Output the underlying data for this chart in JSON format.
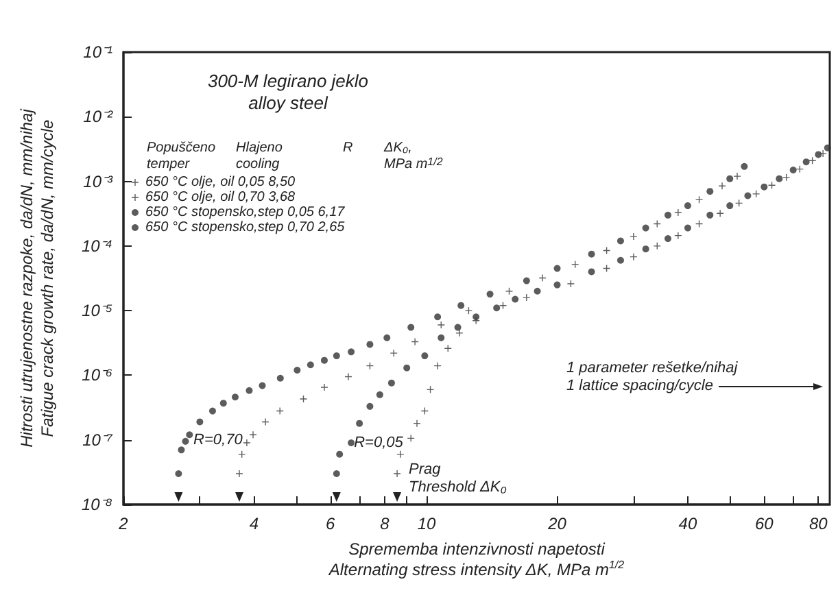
{
  "chart_data": {
    "type": "scatter",
    "title": "300-M legirano jeklo\nalloy steel",
    "xlabel": "Sprememba intenzivnosti napetosti\nAlternating stress intensity ΔK, MPa m$^{1/2}$",
    "ylabel": "Hitrosti utrujenostne razpoke, da/dN, mm/nihaj\nFatigue crack growth rate, da/dN, mm/cycle",
    "log": "xy",
    "xlim": [
      2,
      85
    ],
    "ylim": [
      1e-08,
      0.1
    ],
    "xticks": [
      2,
      {
        "value": 3,
        "label": null
      },
      4,
      {
        "value": 5,
        "label": null
      },
      6,
      {
        "value": 7,
        "label": null
      },
      8,
      {
        "value": 9,
        "label": null
      },
      10,
      20,
      {
        "value": 30,
        "label": null
      },
      40,
      {
        "value": 50,
        "label": null
      },
      60,
      {
        "value": 70,
        "label": null
      },
      80
    ],
    "yticks": [
      {
        "value": 1e-08,
        "label": "10⁻⁸"
      },
      {
        "value": 1e-07,
        "label": "10⁻⁷"
      },
      {
        "value": 1e-06,
        "label": "10⁻⁶"
      },
      {
        "value": 1e-05,
        "label": "10⁻⁵"
      },
      {
        "value": 0.0001,
        "label": "10⁻⁴"
      },
      {
        "value": 0.001,
        "label": "10⁻³"
      },
      {
        "value": 0.01,
        "label": "10⁻²"
      },
      {
        "value": 0.1,
        "label": "10⁻¹"
      }
    ],
    "legend": "top left",
    "grid": false,
    "annotations": [
      "Popuščeno\ntemper",
      "Hlajeno\ncooling",
      "R",
      "ΔK₀,\nMPa m$^{1/2}$",
      {
        "text": "R=0,70",
        "x": 2.9,
        "y": 1e-07
      },
      {
        "text": "R=0,05",
        "x": 6.8,
        "y": 9e-08
      },
      "Prag\nThreshold ΔK₀",
      "1 parameter rešetke/nihaj\n1 lattice spacing/cycle"
    ],
    "series": [
      {
        "name": "650 °C olje, oil 0,05 8,50",
        "color": "#333333",
        "marker": "cross",
        "x": [
          8.55,
          8.7,
          9.2,
          9.5,
          9.9,
          10.2,
          10.6,
          11.2,
          11.9,
          13,
          15,
          17,
          21.5,
          26,
          30,
          34,
          38,
          42.5,
          47.5,
          52.5,
          57.5,
          62.5,
          67.5,
          72.5,
          77.5,
          82
        ],
        "values": [
          3e-08,
          6e-08,
          1.06e-07,
          1.8e-07,
          2.8e-07,
          6e-07,
          1.4e-06,
          2.6e-06,
          4.5e-06,
          7e-06,
          1.2e-05,
          1.6e-05,
          2.6e-05,
          4.5e-05,
          6.8e-05,
          0.0001,
          0.000145,
          0.00022,
          0.00032,
          0.00046,
          0.00064,
          0.00087,
          0.00115,
          0.00155,
          0.0021,
          0.0027
        ]
      },
      {
        "name": "650 °C olje, oil 0,70 3,68",
        "color": "#333333",
        "marker": "cross",
        "x": [
          3.7,
          3.75,
          3.85,
          3.98,
          4.25,
          4.59,
          5.2,
          5.81,
          6.6,
          7.4,
          8.4,
          9.4,
          10.8,
          12.5,
          15.5,
          18.5,
          22,
          26,
          30,
          34,
          38,
          42.5,
          48,
          52
        ],
        "values": [
          3e-08,
          6e-08,
          9e-08,
          1.2e-07,
          1.9e-07,
          2.8e-07,
          4.3e-07,
          6.5e-07,
          9.5e-07,
          1.4e-06,
          2.2e-06,
          3.3e-06,
          6e-06,
          1e-05,
          2e-05,
          3.2e-05,
          5.2e-05,
          8.5e-05,
          0.00014,
          0.00022,
          0.00033,
          0.00052,
          0.00085,
          0.0012
        ]
      },
      {
        "name": "650 °C stopensko,step 0,05 6,17",
        "color": "#333333",
        "marker": "circle",
        "x": [
          6.2,
          6.3,
          6.7,
          7.0,
          7.4,
          7.8,
          8.3,
          9.0,
          9.9,
          10.8,
          11.8,
          13,
          14.5,
          16,
          18,
          20,
          24,
          28,
          32,
          36,
          40,
          45,
          50,
          55,
          60,
          65,
          70,
          75,
          80,
          84
        ],
        "values": [
          3e-08,
          6e-08,
          9e-08,
          1.8e-07,
          3.3e-07,
          5e-07,
          7.6e-07,
          1.3e-06,
          2e-06,
          3.8e-06,
          5.5e-06,
          8e-06,
          1.1e-05,
          1.5e-05,
          2e-05,
          2.5e-05,
          4e-05,
          6e-05,
          9e-05,
          0.00013,
          0.00019,
          0.0003,
          0.00042,
          0.0006,
          0.00082,
          0.0011,
          0.0015,
          0.002,
          0.0026,
          0.0033
        ]
      },
      {
        "name": "650 °C stopensko,step 0,70 2,65",
        "color": "#333333",
        "marker": "circle",
        "x": [
          2.68,
          2.72,
          2.78,
          2.84,
          3.0,
          3.21,
          3.4,
          3.62,
          3.9,
          4.18,
          4.6,
          5.03,
          5.4,
          5.81,
          6.2,
          6.7,
          7.4,
          8.1,
          9.2,
          10.6,
          12,
          14,
          17,
          20,
          24,
          28,
          32,
          36,
          40,
          45,
          50,
          54
        ],
        "values": [
          3e-08,
          7e-08,
          9.5e-08,
          1.2e-07,
          1.9e-07,
          2.8e-07,
          3.7e-07,
          4.6e-07,
          5.8e-07,
          6.9e-07,
          9e-07,
          1.2e-06,
          1.45e-06,
          1.7e-06,
          2e-06,
          2.3e-06,
          3e-06,
          3.8e-06,
          5.5e-06,
          8e-06,
          1.2e-05,
          1.8e-05,
          2.9e-05,
          4.5e-05,
          7.5e-05,
          0.00012,
          0.00019,
          0.0003,
          0.00042,
          0.0007,
          0.0011,
          0.0017
        ]
      }
    ]
  }
}
